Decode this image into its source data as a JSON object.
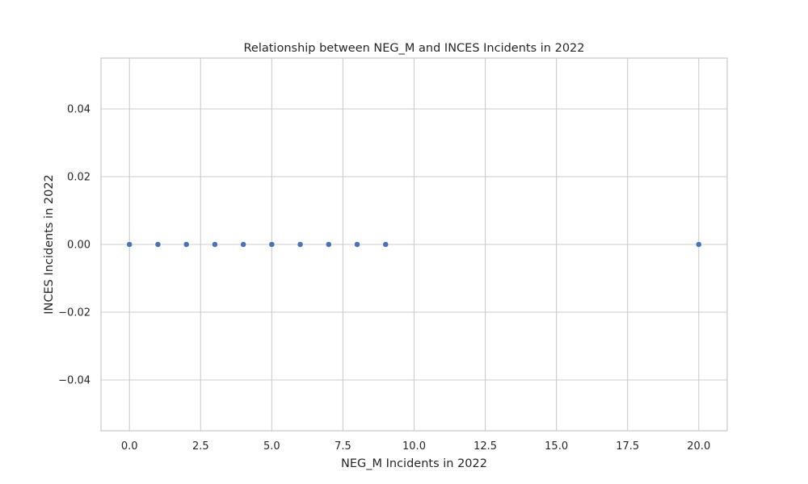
{
  "chart_data": {
    "type": "scatter",
    "title": "Relationship between NEG_M and INCES Incidents in 2022",
    "xlabel": "NEG_M Incidents in 2022",
    "ylabel": "INCES Incidents in 2022",
    "xlim": [
      -1,
      21
    ],
    "ylim": [
      -0.055,
      0.055
    ],
    "xticks": [
      0,
      2.5,
      5,
      7.5,
      10,
      12.5,
      15,
      17.5,
      20
    ],
    "xtick_labels": [
      "0.0",
      "2.5",
      "5.0",
      "7.5",
      "10.0",
      "12.5",
      "15.0",
      "17.5",
      "20.0"
    ],
    "yticks": [
      0.04,
      0.02,
      0,
      -0.02,
      -0.04
    ],
    "ytick_labels": [
      "0.04",
      "0.02",
      "0.00",
      "−0.02",
      "−0.04"
    ],
    "grid": true,
    "marker_color": "#4c72b0",
    "points": [
      {
        "x": 0,
        "y": 0
      },
      {
        "x": 1,
        "y": 0
      },
      {
        "x": 2,
        "y": 0
      },
      {
        "x": 3,
        "y": 0
      },
      {
        "x": 4,
        "y": 0
      },
      {
        "x": 5,
        "y": 0
      },
      {
        "x": 6,
        "y": 0
      },
      {
        "x": 7,
        "y": 0
      },
      {
        "x": 8,
        "y": 0
      },
      {
        "x": 9,
        "y": 0
      },
      {
        "x": 20,
        "y": 0
      }
    ]
  }
}
